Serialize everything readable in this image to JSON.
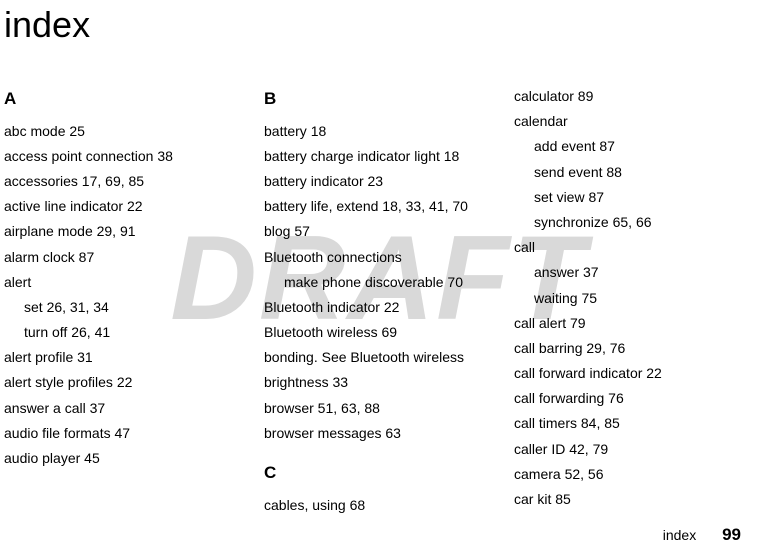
{
  "watermark": "DRAFT",
  "title": "index",
  "footer_label": "index",
  "page_number": "99",
  "col1": {
    "letter": "A",
    "entries": [
      "abc mode  25",
      "access point connection  38",
      "accessories  17, 69, 85",
      "active line indicator  22",
      "airplane mode  29, 91",
      "alarm clock  87",
      "alert",
      "set  26, 31, 34",
      "turn off  26, 41",
      "alert profile  31",
      "alert style profiles  22",
      "answer a call  37",
      "audio file formats  47",
      "audio player  45"
    ],
    "indents": [
      0,
      0,
      0,
      0,
      0,
      0,
      0,
      1,
      1,
      0,
      0,
      0,
      0,
      0
    ]
  },
  "col2": {
    "letterB": "B",
    "entriesB": [
      "battery  18",
      "battery charge indicator light  18",
      "battery indicator  23",
      "battery life, extend  18, 33, 41, 70",
      "blog  57",
      "Bluetooth connections",
      "make phone discoverable  70",
      "Bluetooth indicator  22",
      "Bluetooth wireless  69",
      "bonding. See Bluetooth wireless",
      "brightness  33",
      "browser  51, 63, 88",
      "browser messages  63"
    ],
    "indentsB": [
      0,
      0,
      0,
      0,
      0,
      0,
      1,
      0,
      0,
      0,
      0,
      0,
      0
    ],
    "letterC": "C",
    "entriesC": [
      "cables, using  68"
    ],
    "indentsC": [
      0
    ]
  },
  "col3": {
    "entries": [
      "calculator  89",
      "calendar",
      "add event  87",
      "send event  88",
      "set view  87",
      "synchronize  65, 66",
      "call",
      "answer  37",
      "waiting  75",
      "call alert  79",
      "call barring  29, 76",
      "call forward indicator  22",
      "call forwarding  76",
      "call timers  84, 85",
      "caller ID  42, 79",
      "camera  52, 56",
      "car kit  85"
    ],
    "indents": [
      0,
      0,
      1,
      1,
      1,
      1,
      0,
      1,
      1,
      0,
      0,
      0,
      0,
      0,
      0,
      0,
      0
    ]
  }
}
